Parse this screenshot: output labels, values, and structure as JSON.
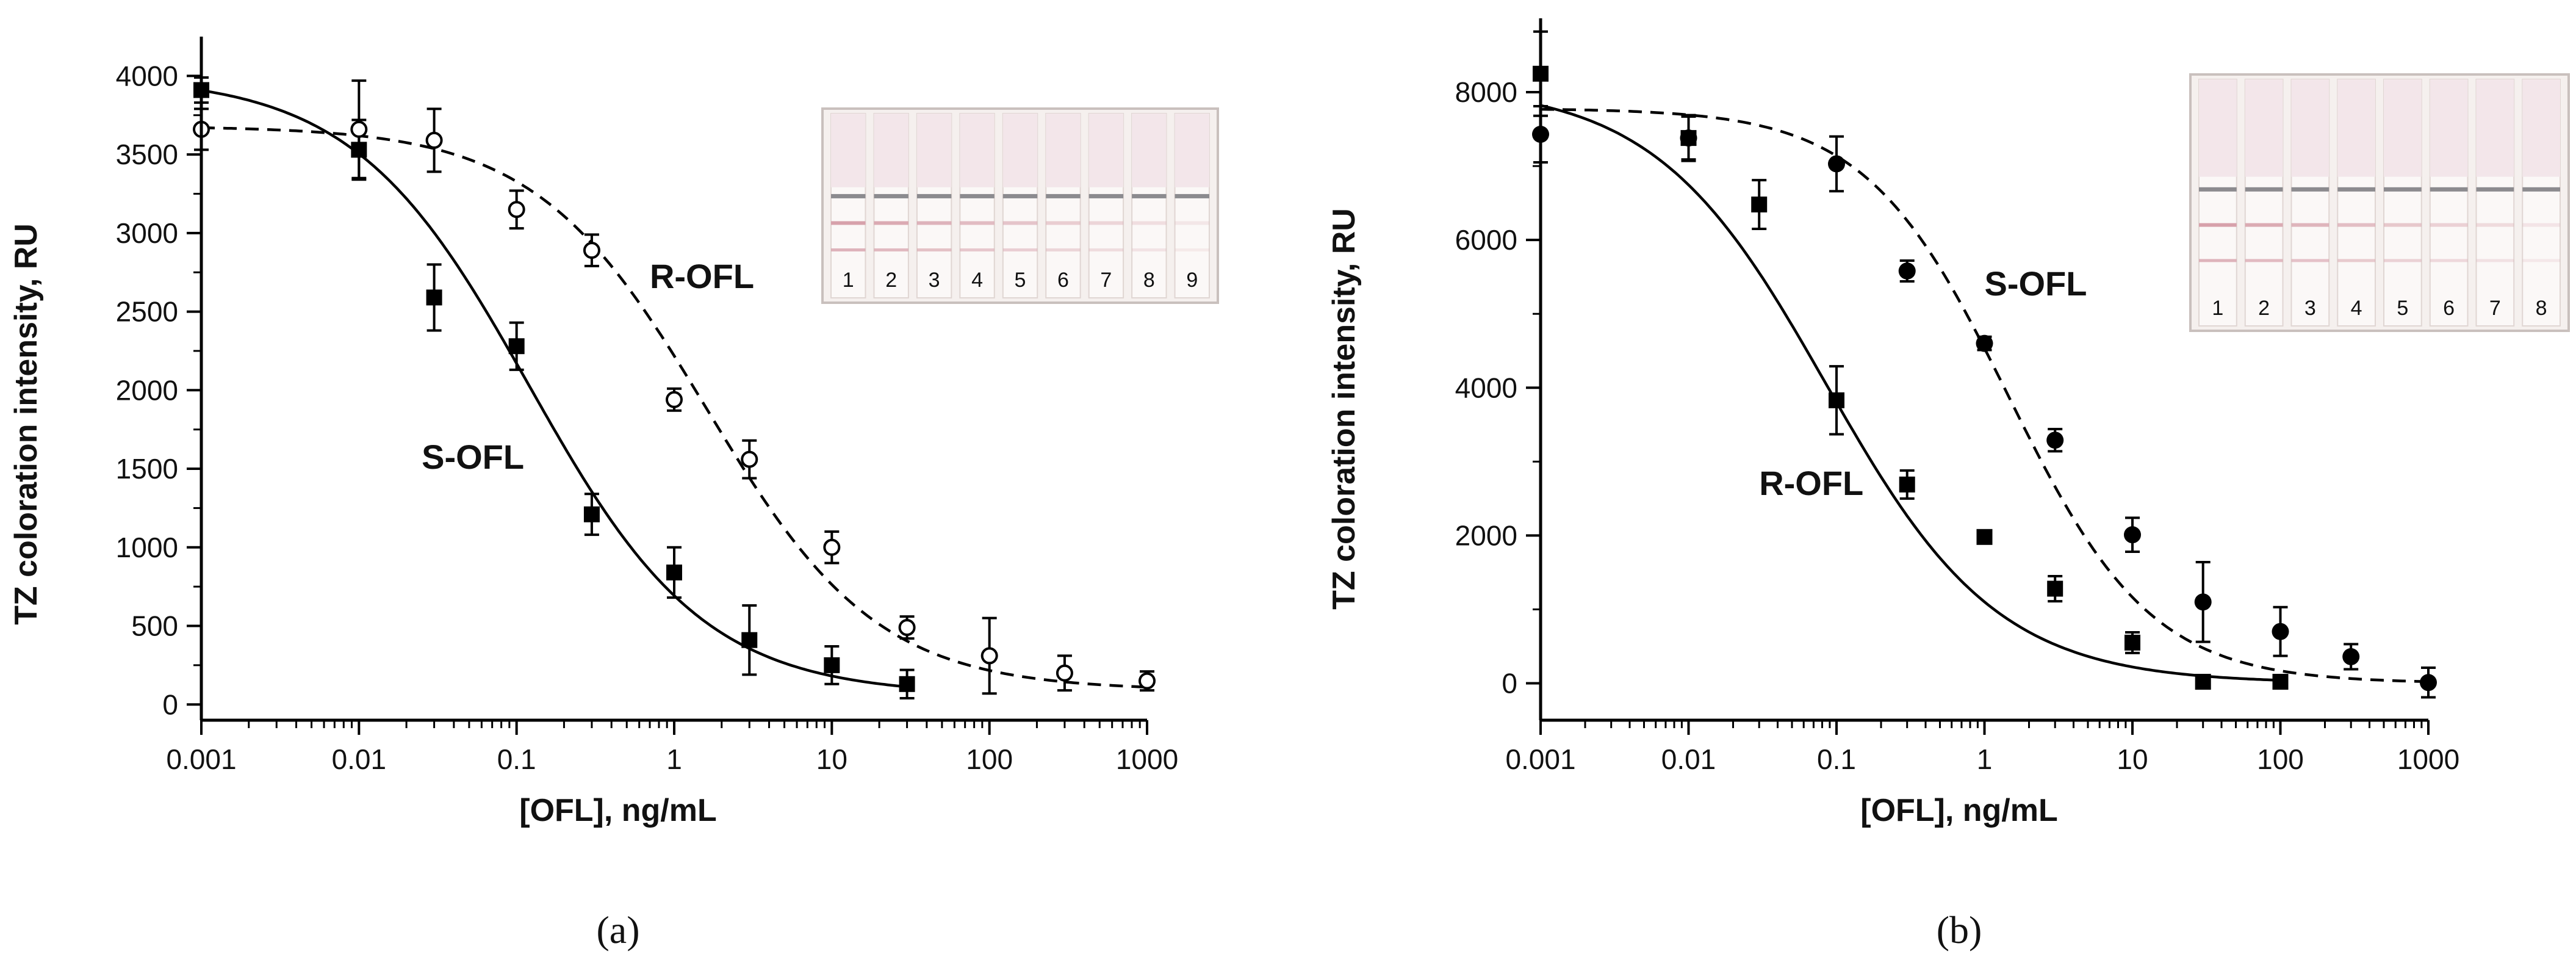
{
  "colors": {
    "ink": "#000000",
    "strip_bg": "#f5f0ee",
    "strip_frame": "#c9c0bd",
    "test_line": "#d7a1ab",
    "control_line": "#8c8b8f"
  },
  "chart_data": [
    {
      "type": "scatter",
      "panel_label": "(a)",
      "xlabel": "[OFL], ng/mL",
      "ylabel": "TZ coloration intensity, RU",
      "xscale": "log",
      "xlim": [
        0.001,
        1000
      ],
      "ylim": [
        -100,
        4250
      ],
      "xticks": [
        0.001,
        0.01,
        0.1,
        1,
        10,
        100,
        1000
      ],
      "xtick_labels": [
        "0.001",
        "0.01",
        "0.1",
        "1",
        "10",
        "100",
        "1000"
      ],
      "yticks": [
        0,
        500,
        1000,
        1500,
        2000,
        2500,
        3000,
        3500,
        4000
      ],
      "ytick_labels": [
        "0",
        "500",
        "1000",
        "1500",
        "2000",
        "2500",
        "3000",
        "3500",
        "4000"
      ],
      "inset": {
        "strip_numbers": [
          "1",
          "2",
          "3",
          "4",
          "5",
          "6",
          "7",
          "8",
          "9"
        ]
      },
      "series": [
        {
          "name": "S-OFL",
          "marker": "square-filled",
          "line": "solid",
          "x": [
            0.001,
            0.01,
            0.03,
            0.1,
            0.3,
            1,
            3,
            10,
            30
          ],
          "y": [
            3910,
            3530,
            2590,
            2280,
            1210,
            840,
            410,
            250,
            130
          ],
          "err": [
            80,
            190,
            210,
            150,
            130,
            160,
            220,
            120,
            90
          ],
          "fit": {
            "top": 4000,
            "bottom": 60,
            "ic50": 0.12,
            "hill": 0.78
          },
          "label": {
            "text": "S-OFL",
            "x": 0.025,
            "y": 1500
          }
        },
        {
          "name": "R-OFL",
          "marker": "circle-open",
          "line": "dashed",
          "x": [
            0.001,
            0.01,
            0.03,
            0.1,
            0.3,
            1,
            3,
            10,
            30,
            100,
            300,
            1000
          ],
          "y": [
            3660,
            3660,
            3590,
            3150,
            2890,
            1940,
            1560,
            1000,
            490,
            310,
            200,
            150
          ],
          "err": [
            130,
            310,
            200,
            120,
            100,
            70,
            120,
            100,
            70,
            240,
            110,
            60
          ],
          "fit": {
            "top": 3680,
            "bottom": 90,
            "ic50": 1.6,
            "hill": 0.8
          },
          "label": {
            "text": "R-OFL",
            "x": 0.7,
            "y": 2650
          }
        }
      ]
    },
    {
      "type": "scatter",
      "panel_label": "(b)",
      "xlabel": "[OFL], ng/mL",
      "ylabel": "TZ coloration intensity, RU",
      "xscale": "log",
      "xlim": [
        0.001,
        1000
      ],
      "ylim": [
        -500,
        9000
      ],
      "xticks": [
        0.001,
        0.01,
        0.1,
        1,
        10,
        100,
        1000
      ],
      "xtick_labels": [
        "0.001",
        "0.01",
        "0.1",
        "1",
        "10",
        "100",
        "1000"
      ],
      "yticks": [
        0,
        2000,
        4000,
        6000,
        8000
      ],
      "ytick_labels": [
        "0",
        "2000",
        "4000",
        "6000",
        "8000"
      ],
      "inset": {
        "strip_numbers": [
          "1",
          "2",
          "3",
          "4",
          "5",
          "6",
          "7",
          "8"
        ]
      },
      "series": [
        {
          "name": "R-OFL",
          "marker": "square-filled",
          "line": "solid",
          "x": [
            0.001,
            0.01,
            0.03,
            0.1,
            0.3,
            1,
            3,
            10,
            30,
            100
          ],
          "y": [
            8250,
            7380,
            6480,
            3830,
            2690,
            1980,
            1280,
            550,
            20,
            20
          ],
          "err": [
            570,
            310,
            330,
            460,
            190,
            80,
            170,
            140,
            40,
            40
          ],
          "fit": {
            "top": 8100,
            "bottom": 0,
            "ic50": 0.085,
            "hill": 0.75
          },
          "label": {
            "text": "R-OFL",
            "x": 0.03,
            "y": 2550
          }
        },
        {
          "name": "S-OFL",
          "marker": "circle-filled",
          "line": "dashed",
          "x": [
            0.001,
            0.01,
            0.1,
            0.3,
            1,
            3,
            10,
            30,
            100,
            300,
            1000
          ],
          "y": [
            7430,
            7380,
            7030,
            5580,
            4600,
            3290,
            2010,
            1100,
            700,
            360,
            10
          ],
          "err": [
            380,
            290,
            370,
            140,
            90,
            150,
            230,
            540,
            330,
            170,
            200
          ],
          "fit": {
            "top": 7780,
            "bottom": 0,
            "ic50": 1.45,
            "hill": 0.9
          },
          "label": {
            "text": "S-OFL",
            "x": 1.0,
            "y": 5250
          }
        }
      ]
    }
  ]
}
